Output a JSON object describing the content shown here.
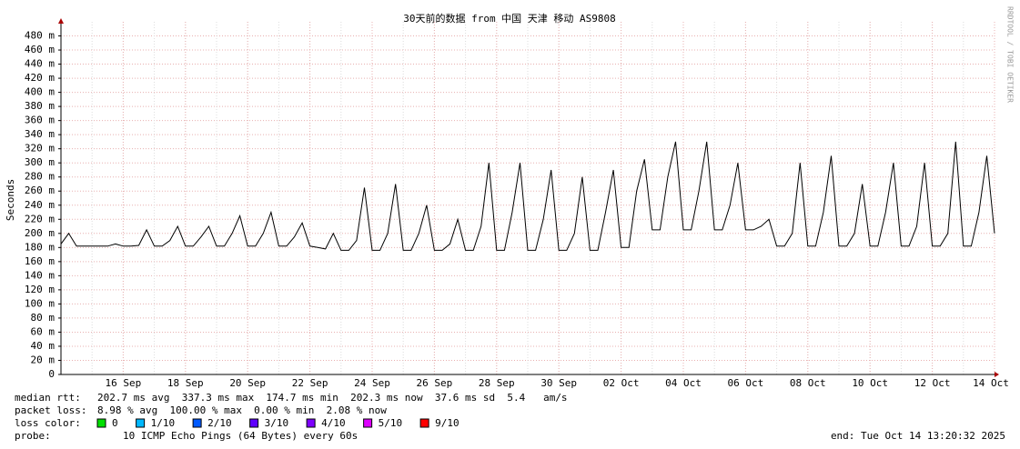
{
  "chart_data": {
    "type": "line",
    "title": "30天前的数据 from 中国 天津 移动 AS9808",
    "y_label": "Seconds",
    "categories": [
      null,
      null,
      null,
      null,
      null,
      null,
      null,
      null,
      "16 Sep",
      null,
      null,
      null,
      null,
      null,
      null,
      null,
      "18 Sep",
      null,
      null,
      null,
      null,
      null,
      null,
      null,
      "20 Sep",
      null,
      null,
      null,
      null,
      null,
      null,
      null,
      "22 Sep",
      null,
      null,
      null,
      null,
      null,
      null,
      null,
      "24 Sep",
      null,
      null,
      null,
      null,
      null,
      null,
      null,
      "26 Sep",
      null,
      null,
      null,
      null,
      null,
      null,
      null,
      "28 Sep",
      null,
      null,
      null,
      null,
      null,
      null,
      null,
      "30 Sep",
      null,
      null,
      null,
      null,
      null,
      null,
      null,
      "02 Oct",
      null,
      null,
      null,
      null,
      null,
      null,
      null,
      "04 Oct",
      null,
      null,
      null,
      null,
      null,
      null,
      null,
      "06 Oct",
      null,
      null,
      null,
      null,
      null,
      null,
      null,
      "08 Oct",
      null,
      null,
      null,
      null,
      null,
      null,
      null,
      "10 Oct",
      null,
      null,
      null,
      null,
      null,
      null,
      null,
      "12 Oct",
      null,
      null,
      null,
      null,
      null,
      null,
      null,
      "14 Oct"
    ],
    "series": [
      {
        "color": "#000000",
        "values": [
          0.185,
          0.2,
          0.182,
          0.182,
          0.182,
          0.182,
          0.182,
          0.185,
          0.182,
          0.182,
          0.183,
          0.205,
          0.182,
          0.182,
          0.19,
          0.21,
          0.182,
          0.182,
          0.195,
          0.21,
          0.182,
          0.182,
          0.2,
          0.225,
          0.182,
          0.182,
          0.2,
          0.23,
          0.182,
          0.182,
          0.195,
          0.215,
          0.182,
          0.18,
          0.178,
          0.2,
          0.176,
          0.176,
          0.19,
          0.265,
          0.176,
          0.176,
          0.2,
          0.27,
          0.176,
          0.176,
          0.2,
          0.24,
          0.176,
          0.176,
          0.185,
          0.22,
          0.176,
          0.176,
          0.21,
          0.3,
          0.176,
          0.176,
          0.23,
          0.3,
          0.176,
          0.176,
          0.22,
          0.29,
          0.176,
          0.176,
          0.2,
          0.28,
          0.176,
          0.176,
          0.23,
          0.29,
          0.18,
          0.18,
          0.26,
          0.305,
          0.205,
          0.205,
          0.28,
          0.33,
          0.205,
          0.205,
          0.26,
          0.33,
          0.205,
          0.205,
          0.24,
          0.3,
          0.205,
          0.205,
          0.21,
          0.22,
          0.182,
          0.182,
          0.2,
          0.3,
          0.182,
          0.182,
          0.23,
          0.31,
          0.182,
          0.182,
          0.2,
          0.27,
          0.182,
          0.182,
          0.23,
          0.3,
          0.182,
          0.182,
          0.21,
          0.3,
          0.182,
          0.182,
          0.2,
          0.33,
          0.182,
          0.182,
          0.23,
          0.31,
          0.2
        ]
      }
    ],
    "ylim": [
      0,
      0.5
    ],
    "yticks": [
      0,
      {
        "value": 0.02,
        "label": "20 m"
      },
      {
        "value": 0.04,
        "label": "40 m"
      },
      {
        "value": 0.06,
        "label": "60 m"
      },
      {
        "value": 0.08,
        "label": "80 m"
      },
      {
        "value": 0.1,
        "label": "100 m"
      },
      {
        "value": 0.12,
        "label": "120 m"
      },
      {
        "value": 0.14,
        "label": "140 m"
      },
      {
        "value": 0.16,
        "label": "160 m"
      },
      {
        "value": 0.18,
        "label": "180 m"
      },
      {
        "value": 0.2,
        "label": "200 m"
      },
      {
        "value": 0.22,
        "label": "220 m"
      },
      {
        "value": 0.24,
        "label": "240 m"
      },
      {
        "value": 0.26,
        "label": "260 m"
      },
      {
        "value": 0.28,
        "label": "280 m"
      },
      {
        "value": 0.3,
        "label": "300 m"
      },
      {
        "value": 0.32,
        "label": "320 m"
      },
      {
        "value": 0.34,
        "label": "340 m"
      },
      {
        "value": 0.36,
        "label": "360 m"
      },
      {
        "value": 0.38,
        "label": "380 m"
      },
      {
        "value": 0.4,
        "label": "400 m"
      },
      {
        "value": 0.42,
        "label": "420 m"
      },
      {
        "value": 0.44,
        "label": "440 m"
      },
      {
        "value": 0.46,
        "label": "460 m"
      },
      {
        "value": 0.48,
        "label": "480 m"
      }
    ],
    "grid": true
  },
  "watermark": "RRDTOOL / TOBI OETIKER",
  "stats": {
    "median_rtt": {
      "label": "median rtt:",
      "text": "202.7 ms avg  337.3 ms max  174.7 ms min  202.3 ms now  37.6 ms sd  5.4   am/s"
    },
    "packet_loss": {
      "label": "packet loss:",
      "text": "8.98 % avg  100.00 % max  0.00 % min  2.08 % now"
    },
    "loss_color": {
      "label": "loss color:",
      "items": [
        {
          "label": "0",
          "color": "#00e000"
        },
        {
          "label": "1/10",
          "color": "#00b8ff"
        },
        {
          "label": "2/10",
          "color": "#0059ff"
        },
        {
          "label": "3/10",
          "color": "#5e00ff"
        },
        {
          "label": "4/10",
          "color": "#7e00ff"
        },
        {
          "label": "5/10",
          "color": "#dd00ff"
        },
        {
          "label": "9/10",
          "color": "#ff0000"
        }
      ]
    },
    "probe": {
      "label": "probe:",
      "text": "10 ICMP Echo Pings (64 Bytes) every 60s"
    },
    "end": "end: Tue Oct 14 13:20:32 2025"
  }
}
